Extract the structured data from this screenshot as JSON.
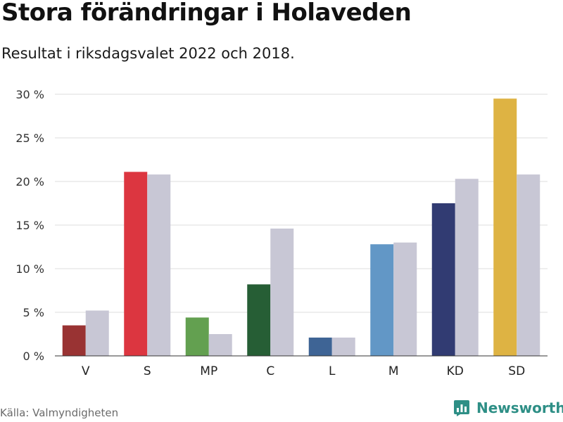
{
  "header": {
    "title": "Stora förändringar i Holaveden",
    "subtitle": "Resultat i riksdagsvalet 2022 och 2018."
  },
  "footer": {
    "source": "Källa: Valmyndigheten",
    "brand": "Newsworthy",
    "brand_color": "#2e8f86",
    "brand_icon": "bar-chart-speech-bubble-icon"
  },
  "chart_data": {
    "type": "bar",
    "categories": [
      "V",
      "S",
      "MP",
      "C",
      "L",
      "M",
      "KD",
      "SD"
    ],
    "series": [
      {
        "values": [
          3.5,
          21.1,
          4.4,
          8.2,
          2.1,
          12.8,
          17.5,
          29.5
        ],
        "colors": [
          "#993333",
          "#DC3640",
          "#63A050",
          "#265E35",
          "#3E6495",
          "#6297C6",
          "#313B72",
          "#DEB343"
        ]
      },
      {
        "values": [
          5.2,
          20.8,
          2.5,
          14.6,
          2.1,
          13.0,
          20.3,
          20.8
        ],
        "color": "#C8C7D5"
      }
    ],
    "yticks": [
      "0 %",
      "5 %",
      "10 %",
      "15 %",
      "20 %",
      "25 %",
      "30 %"
    ],
    "ylim": [
      0,
      30
    ],
    "grid": true,
    "xlabel": "",
    "ylabel": ""
  }
}
